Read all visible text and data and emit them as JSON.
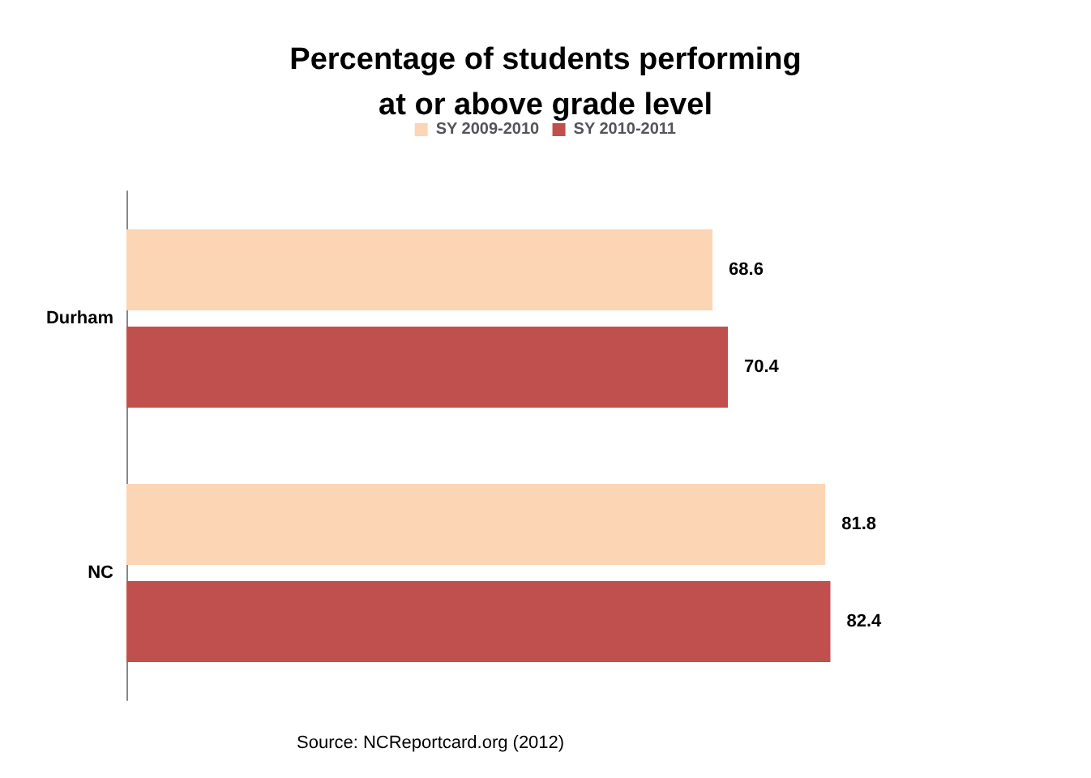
{
  "chart_data": {
    "type": "bar",
    "orientation": "horizontal",
    "title": "Percentage of students performing\nat or above grade level",
    "categories": [
      "Durham",
      "NC"
    ],
    "series": [
      {
        "name": "SY 2009-2010",
        "color": "#fcd5b4",
        "values": [
          68.6,
          81.8
        ]
      },
      {
        "name": "SY 2010-2011",
        "color": "#c0504d",
        "values": [
          70.4,
          82.4
        ]
      }
    ],
    "data_labels": true,
    "legend": "top",
    "annotations": [
      "Source: NCReportcard.org (2012)"
    ]
  }
}
